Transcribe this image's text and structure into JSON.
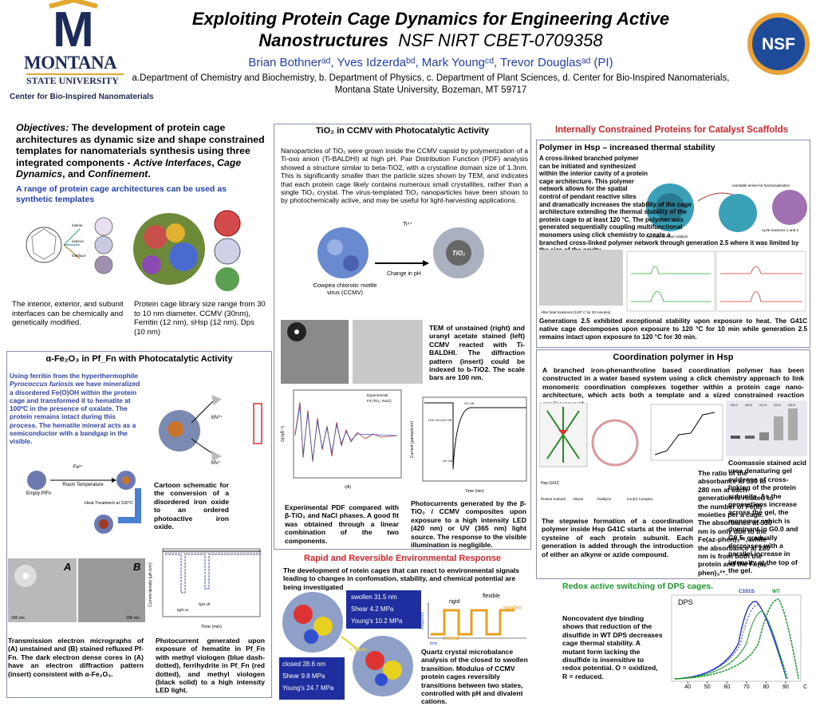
{
  "header": {
    "title": "Exploiting Protein Cage Dynamics for Engineering Active Nanostructures",
    "grant": "NSF NIRT CBET-0709358",
    "authors": "Brian Bothnerᵃᵈ, Yves Idzerdaᵇᵈ, Mark Youngᶜᵈ, Trevor Douglasᵃᵈ (PI)",
    "affiliations": "a.Department of Chemistry and Biochemistry, b. Department of Physics, c. Department of Plant Sciences, d. Center for Bio-Inspired Nanomaterials, Montana State University, Bozeman, MT 59717",
    "logo": {
      "letter": "M",
      "name": "MONTANA",
      "sub": "STATE UNIVERSITY",
      "center": "Center for Bio-Inspired Nanomaterials"
    },
    "nsf": "NSF"
  },
  "objectives": {
    "lead": "Objectives:",
    "parts": [
      " The development of protein cage architectures as dynamic size and shape constrained templates for nanomaterials synthesis using three integrated components - ",
      "Active Interfaces",
      ", ",
      "Cage Dynamics",
      ", and ",
      "Confinement",
      "."
    ],
    "highlight": "A range of protein cage architectures can be used as synthetic templates",
    "labels": [
      "interior",
      "exterior",
      "interface"
    ],
    "caption_left": "The interior, exterior, and subunit interfaces can be chemically and genetically modified.",
    "caption_right": "Protein cage library size range from 30 to 10 nm diameter.  CCMV (30nm), Ferritin (12 nm), sHsp (12 nm), Dps (10 nm)"
  },
  "fe": {
    "title": "α-Fe₂O₃ in Pf_Fn with Photocatalytic Activity",
    "intro": [
      "Using ferritin from the hyperthermophile ",
      "Pyrococcus furiosis",
      " we have mineralized a disordered Fe(O)OH within the protein cage and transformed it to hematite at 100ºC in the presence of oxalate.  The protein remains intact during this process.  The hematite mineral acts as a semiconductor with a bandgap in the visible."
    ],
    "scheme": {
      "mv2": "MV²⁺",
      "mv1": "MV⁺",
      "fe3": "Fe³⁺",
      "room": "Room Temperature",
      "empty": "Empty PfFn",
      "heat": "Heat Treatment at 100°C"
    },
    "cartoon_caption": "Cartoon schematic for the conversion of a disordered iron oxide to an ordered photoactive iron oxide.",
    "tem": {
      "a": "A",
      "b": "B",
      "scale_a": "200 nm",
      "scale_b": "200 nm"
    },
    "tem_caption": "Transmission electron micrographs of (A) unstained and (B) stained refluxed Pf-Fn. The dark electron dense cores in (A) have an electron diffraction pattern (insert) consistent with α-Fe₂O₃.",
    "graph": {
      "ylabel": "Current density (μA /cm²)",
      "xlabel": "Time (min)",
      "on": "light on",
      "off": "light off"
    },
    "graph_caption": "Photocurrent generated upon exposure of hematite in Pf_Fn with methyl viologen (blue dash-dotted), ferrihydrite in Pf_Fn (red dotted), and methyl viologen (black solid) to a high intensity LED light."
  },
  "tio2": {
    "title": "TiO₂ in CCMV with Photocatalytic Activity",
    "text": "Nanoparticles of TiO₂ were grown inside the CCMV capsid  by polymerization of a Ti-oxo anion (Ti-BALDHI) at high pH.  Pair Distribution Function (PDF) analysis showed a structure similar to beta-TiO2, with a crystalline domain size of 1.3nm.  This is significantly smaller than the particle sizes shown by TEM, and indicates that each protein cage likely contains numerous small crystallites, rather than a single TiO₂ crystal.  The virus-templated TiO₂ nanoparticles have been shown to by photochemically active, and may be useful for light-harvesting applications.",
    "scheme": {
      "ion": "Ti⁴⁺",
      "change": "Change in pH",
      "virus": "Cowpea chlorotic mottle virus (CCMV)",
      "product": "TiO₂"
    },
    "tem_caption": "TEM of unstained (right) and uranyl acetate stained (left) CCMV reacted with Ti-BALDHI. The diffraction pattern (insert) could be indexed to b-TiO2.  The scale bars are 100 nm.",
    "pdf": {
      "exp": "Experimental",
      "fit": "Fit (TiO₂, NaCl)",
      "xlabel": "r(Å)",
      "ylabel": "G(r)(Å⁻²)"
    },
    "pdf_caption": "Experimental PDF compared with β-TiO₂ and NaCl phases.  A good fit was obtained through a linear combination of the two components.",
    "pc": {
      "led_on": "LED On",
      "led_off": "LED Off",
      "uv_on": "UV On",
      "uv_off": "UV Off",
      "xlabel": "Time (min)",
      "ylabel": "Current (μamps/cm²)"
    },
    "pc_caption": "Photocurrents generated by the β-TiO₂ / CCMV composites upon exposure to a high intensity LED (420 nm) or UV (365 nm) light source.  The response to the visible illumination is negligible."
  },
  "rapid": {
    "title": "Rapid and Reversible Environmental Response",
    "text": "The development of rotein cages that can react to environmental signals leading to changes in confomation, stability, and chemical potential are being investigated",
    "swollen": [
      "swollen  31.5 nm",
      "Shear  4.2 MPa",
      "Young's 10.2 MPa"
    ],
    "closed": [
      "closed  28.6 nm",
      "Shear  9.8 MPa",
      "Young's 24.7 MPa"
    ],
    "time": "< 1 sec.",
    "graph": {
      "flexible": "flexible",
      "rigid": "rigid",
      "swollen": "swollen",
      "closed": "closed",
      "ylabel": "frequency",
      "xlabel": "time"
    },
    "caption": "Quartz crystal microbalance analysis of the closed to swollen transition. Modulus of CCMV protein cages reversibly transitions between two states, controlled with pH and divalent cations."
  },
  "internal": {
    "header": "Internally Constrained Proteins for Catalyst Scaffolds",
    "sub": "Polymer in Hsp – increased thermal stability",
    "text": "A cross-linked branched polymer can be initiated and synthesized within the interior cavity of a protein cage architecture. This polymer network allows for the spatial control of pendant reactive sites and dramatically increases the stability of the cage architecture extending the thermal stability of the protein cage to at least 120 °C. The polymer was generated sequentially coupling multifunctional monomers using click chemistry to create a branched cross-linked polymer network through generation 2.5 where it was limited by the size of the cavity.",
    "labels": {
      "amine": "reactable amine for functionalization",
      "cycle": "cycle reactions 1 and 2",
      "catalyst": "Internally directed catalyst",
      "heat": "After heat treatment (120º C for 30 minutes)"
    },
    "caption": "Generations 2.5 exhibited exceptional stability upon exposure to heat. The G41C native cage decomposes upon exposure to 120 °C for 10 min while generation 2.5 remains intact upon exposure to 120 °C for 30 min."
  },
  "coord": {
    "title": "Coordination polymer in Hsp",
    "text": "A branched iron-phenanthroline based coordination polymer has been constructed in a water based system using a click chemistry approach to link monomeric coordination complexes together within a protein cage nano-architecture, which acts both a template and a sized constrained reaction environment.",
    "ratio": "The ratio of the absorbance at 530 to 280 nm at each generation is related to the number of Fe(II) moieties per a cage. The absorbance at 530 nm is only due to the Fe(az-phen)₃²⁺, while the absorbance at 280 nm is from both the protein and the Fe(az-phen)₃²⁺.",
    "stepwise": "The stepwise formation of a coordination polymer inside Hsp G41C starts at the internal cysteine of each protein subunit. Each generation is added through the introduction of either an alkyne or azide compound.",
    "gel": "Coomassie stained acid urea denaturing gel evidence of cross-linking of the protein subunits. As the generations increase across the gel, the monomer, which is dominant in G0.0 and G0.5, gradually decreases with a parallel increase in intensity at the top of the gel.",
    "labels": [
      "Hsp G41C",
      "Protein Subunit",
      "Alkyne",
      "Trialkyne",
      "Iron(II) Complex"
    ],
    "lanes": [
      "G0.0",
      "G0.5",
      "G1.5",
      "G2.5",
      "G3.5"
    ]
  },
  "redox": {
    "title": "Redox active switching of DPS cages.",
    "text": "Noncovalent dye binding shows that reduction of the disulfide in WT DPS decreases cage thermal stability.  A mutant form lacking the disulfide is insensitive to redox potential.  O = oxidized, R = reduced.",
    "chart": {
      "label": "DPS",
      "mutant": "C101S",
      "wt": "WT",
      "xlim": [
        33,
        97
      ],
      "xticks": [
        40,
        50,
        60,
        70,
        80,
        90
      ],
      "unit": "C"
    }
  }
}
